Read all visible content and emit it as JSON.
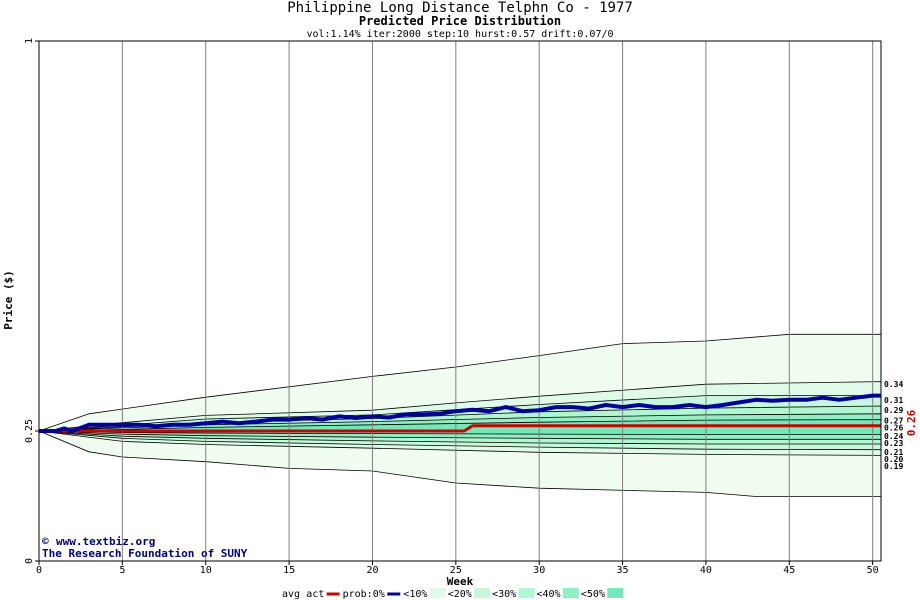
{
  "title": "Philippine Long Distance Telphn Co  - 1977",
  "subtitle": "Predicted Price Distribution",
  "params": "vol:1.14% iter:2000 step:10 hurst:0.57 drift:0.07/0",
  "credit_site": "www.textbiz.org",
  "credit_org": "The Research Foundation of SUNY",
  "colors": {
    "band0": "#f0fcf0",
    "band10": "#e0fae8",
    "band20": "#c8f8dc",
    "band30": "#b0f6d0",
    "band40": "#90f0c4",
    "band50": "#70eab8",
    "act": "#cc0000",
    "prob": "#0000a0",
    "grid": "#808080"
  },
  "chart_data": {
    "type": "area",
    "title": "Philippine Long Distance Telphn Co  - 1977",
    "subtitle": "Predicted Price Distribution",
    "xlabel": "Week",
    "ylabel": "Price ($)",
    "xlim": [
      0,
      50.5
    ],
    "ylim": [
      0,
      1
    ],
    "x_ticks": [
      0,
      5,
      10,
      15,
      20,
      25,
      30,
      35,
      40,
      45,
      50
    ],
    "y_tick_labels": [
      "0",
      "0.25",
      "1"
    ],
    "y_tick_values": [
      0,
      0.25,
      1
    ],
    "current_price_label": "0.26",
    "end_labels": [
      "0.34",
      "0.31",
      "0.29",
      "0.27",
      "0.26",
      "0.24",
      "0.23",
      "0.21",
      "0.20",
      "0.19"
    ],
    "bands": [
      {
        "name": "0%",
        "upper": [
          [
            0,
            0.25
          ],
          [
            3,
            0.283
          ],
          [
            10,
            0.315
          ],
          [
            20,
            0.355
          ],
          [
            25,
            0.373
          ],
          [
            30,
            0.395
          ],
          [
            35,
            0.418
          ],
          [
            40,
            0.423
          ],
          [
            45,
            0.436
          ],
          [
            50.5,
            0.436
          ]
        ],
        "lower": [
          [
            0,
            0.25
          ],
          [
            3,
            0.21
          ],
          [
            5,
            0.2
          ],
          [
            10,
            0.191
          ],
          [
            15,
            0.178
          ],
          [
            20,
            0.173
          ],
          [
            25,
            0.15
          ],
          [
            30,
            0.14
          ],
          [
            40,
            0.132
          ],
          [
            43,
            0.124
          ],
          [
            50.5,
            0.124
          ]
        ]
      },
      {
        "name": "10%",
        "upper": [
          [
            0,
            0.25
          ],
          [
            5,
            0.266
          ],
          [
            10,
            0.28
          ],
          [
            20,
            0.29
          ],
          [
            25,
            0.304
          ],
          [
            30,
            0.317
          ],
          [
            40,
            0.34
          ],
          [
            50.5,
            0.345
          ]
        ],
        "lower": [
          [
            0,
            0.25
          ],
          [
            5,
            0.23
          ],
          [
            10,
            0.224
          ],
          [
            20,
            0.217
          ],
          [
            30,
            0.209
          ],
          [
            40,
            0.205
          ],
          [
            50.5,
            0.203
          ]
        ]
      },
      {
        "name": "20%",
        "upper": [
          [
            0,
            0.25
          ],
          [
            5,
            0.261
          ],
          [
            10,
            0.273
          ],
          [
            20,
            0.281
          ],
          [
            25,
            0.291
          ],
          [
            30,
            0.301
          ],
          [
            40,
            0.318
          ],
          [
            50.5,
            0.318
          ]
        ],
        "lower": [
          [
            0,
            0.25
          ],
          [
            5,
            0.236
          ],
          [
            10,
            0.23
          ],
          [
            20,
            0.224
          ],
          [
            30,
            0.219
          ],
          [
            40,
            0.215
          ],
          [
            50.5,
            0.214
          ]
        ]
      },
      {
        "name": "30%",
        "upper": [
          [
            0,
            0.25
          ],
          [
            5,
            0.258
          ],
          [
            10,
            0.266
          ],
          [
            20,
            0.274
          ],
          [
            30,
            0.287
          ],
          [
            40,
            0.294
          ],
          [
            50.5,
            0.298
          ]
        ],
        "lower": [
          [
            0,
            0.25
          ],
          [
            5,
            0.24
          ],
          [
            10,
            0.236
          ],
          [
            20,
            0.231
          ],
          [
            30,
            0.227
          ],
          [
            40,
            0.225
          ],
          [
            50.5,
            0.225
          ]
        ]
      },
      {
        "name": "40%",
        "upper": [
          [
            0,
            0.25
          ],
          [
            5,
            0.256
          ],
          [
            10,
            0.262
          ],
          [
            20,
            0.268
          ],
          [
            30,
            0.276
          ],
          [
            40,
            0.281
          ],
          [
            50.5,
            0.283
          ]
        ],
        "lower": [
          [
            0,
            0.25
          ],
          [
            5,
            0.244
          ],
          [
            10,
            0.241
          ],
          [
            20,
            0.238
          ],
          [
            30,
            0.236
          ],
          [
            40,
            0.234
          ],
          [
            50.5,
            0.234
          ]
        ]
      },
      {
        "name": "50%",
        "upper": [
          [
            0,
            0.25
          ],
          [
            5,
            0.253
          ],
          [
            10,
            0.257
          ],
          [
            20,
            0.262
          ],
          [
            30,
            0.267
          ],
          [
            40,
            0.271
          ],
          [
            50.5,
            0.272
          ]
        ],
        "lower": [
          [
            0,
            0.25
          ],
          [
            5,
            0.247
          ],
          [
            10,
            0.246
          ],
          [
            20,
            0.245
          ],
          [
            30,
            0.244
          ],
          [
            40,
            0.243
          ],
          [
            50.5,
            0.243
          ]
        ]
      }
    ],
    "series": [
      {
        "name": "act",
        "points": [
          [
            0,
            0.25
          ],
          [
            25.5,
            0.25
          ],
          [
            26,
            0.26
          ],
          [
            50.5,
            0.26
          ]
        ]
      },
      {
        "name": "prob",
        "points": [
          [
            0,
            0.25
          ],
          [
            1,
            0.25
          ],
          [
            1.5,
            0.255
          ],
          [
            2,
            0.25
          ],
          [
            3,
            0.262
          ],
          [
            4,
            0.262
          ],
          [
            5,
            0.262
          ],
          [
            6,
            0.262
          ],
          [
            7,
            0.259
          ],
          [
            8,
            0.262
          ],
          [
            9,
            0.262
          ],
          [
            10,
            0.265
          ],
          [
            11,
            0.268
          ],
          [
            12,
            0.265
          ],
          [
            13,
            0.268
          ],
          [
            14,
            0.272
          ],
          [
            15,
            0.272
          ],
          [
            16,
            0.275
          ],
          [
            17,
            0.272
          ],
          [
            18,
            0.278
          ],
          [
            19,
            0.275
          ],
          [
            20,
            0.278
          ],
          [
            21,
            0.276
          ],
          [
            22,
            0.282
          ],
          [
            23,
            0.282
          ],
          [
            24,
            0.283
          ],
          [
            25,
            0.288
          ],
          [
            26,
            0.291
          ],
          [
            27,
            0.288
          ],
          [
            28,
            0.296
          ],
          [
            29,
            0.288
          ],
          [
            30,
            0.29
          ],
          [
            31,
            0.296
          ],
          [
            32,
            0.296
          ],
          [
            33,
            0.293
          ],
          [
            34,
            0.3
          ],
          [
            35,
            0.296
          ],
          [
            36,
            0.3
          ],
          [
            37,
            0.296
          ],
          [
            38,
            0.296
          ],
          [
            39,
            0.3
          ],
          [
            40,
            0.296
          ],
          [
            41,
            0.3
          ],
          [
            42,
            0.305
          ],
          [
            43,
            0.31
          ],
          [
            44,
            0.308
          ],
          [
            45,
            0.31
          ],
          [
            46,
            0.31
          ],
          [
            47,
            0.314
          ],
          [
            48,
            0.31
          ],
          [
            49,
            0.314
          ],
          [
            50,
            0.318
          ],
          [
            50.5,
            0.318
          ]
        ]
      }
    ],
    "legend": {
      "items": [
        {
          "label": "avg",
          "swatch": "none"
        },
        {
          "label": "act",
          "swatch": "line",
          "color": "#cc0000"
        },
        {
          "label": "prob:0%",
          "swatch": "line",
          "color": "#0000a0"
        },
        {
          "label": "<10%",
          "swatch": "box",
          "color": "#e0fae8"
        },
        {
          "label": "<20%",
          "swatch": "box",
          "color": "#c8f8dc"
        },
        {
          "label": "<30%",
          "swatch": "box",
          "color": "#b0f6d0"
        },
        {
          "label": "<40%",
          "swatch": "box",
          "color": "#90f0c4"
        },
        {
          "label": "<50%",
          "swatch": "box",
          "color": "#70eab8"
        }
      ],
      "placement": "bottom"
    }
  }
}
